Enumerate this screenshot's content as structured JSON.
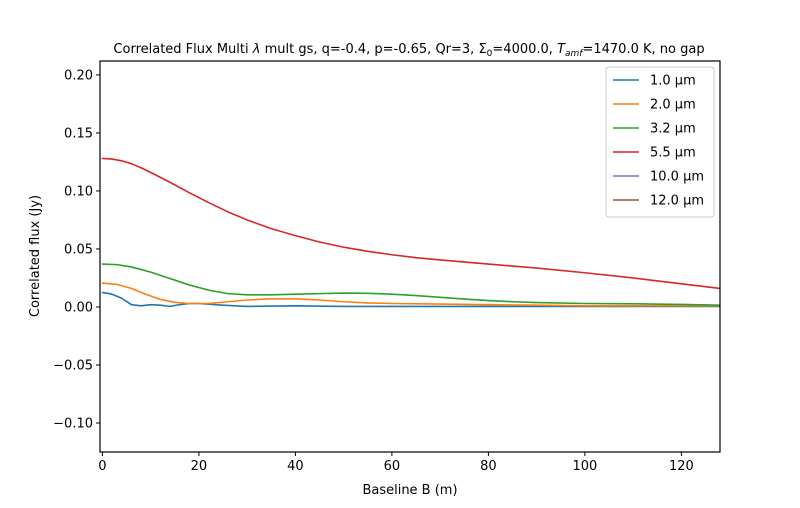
{
  "chart_data": {
    "type": "line",
    "title_parts": {
      "a": "Correlated Flux Multi ",
      "lambda": "λ",
      "b": " mult gs, q=-0.4, p=-0.65, Qr=3, Σ",
      "sigma_sub": "0",
      "c": "=4000.0, ",
      "t": "T",
      "t_sub": "amf",
      "d": "=1470.0 K, no gap"
    },
    "xlabel": "Baseline B (m)",
    "ylabel": "Correlated flux (Jy)",
    "xlim": [
      -0.5,
      128
    ],
    "ylim": [
      -0.125,
      0.212
    ],
    "xticks": [
      0,
      20,
      40,
      60,
      80,
      100,
      120
    ],
    "yticks": [
      -0.1,
      -0.05,
      0.0,
      0.05,
      0.1,
      0.15,
      0.2
    ],
    "ytick_labels": [
      "−0.10",
      "−0.05",
      "0.00",
      "0.05",
      "0.10",
      "0.15",
      "0.20"
    ],
    "legend_position": "top-right",
    "grid": false,
    "series": [
      {
        "name": "1.0 μm",
        "color": "#1f77b4",
        "x": [
          0,
          2,
          4,
          6,
          8,
          10,
          12,
          14,
          16,
          18,
          20,
          25,
          30,
          40,
          50,
          60,
          70,
          80,
          90,
          100,
          110,
          120,
          128
        ],
        "y": [
          0.0125,
          0.011,
          0.0075,
          0.002,
          0.001,
          0.002,
          0.0015,
          0.0005,
          0.002,
          0.003,
          0.003,
          0.0015,
          0.0005,
          0.001,
          0.0005,
          0.0005,
          0.0005,
          0.0005,
          0.0005,
          0.0005,
          0.0005,
          0.0005,
          0.0005
        ]
      },
      {
        "name": "2.0 μm",
        "color": "#ff7f0e",
        "x": [
          0,
          3,
          6,
          9,
          12,
          15,
          18,
          22,
          26,
          30,
          35,
          40,
          45,
          50,
          55,
          60,
          70,
          80,
          90,
          100,
          110,
          120,
          128
        ],
        "y": [
          0.0205,
          0.0195,
          0.016,
          0.011,
          0.0065,
          0.004,
          0.003,
          0.003,
          0.0045,
          0.006,
          0.007,
          0.007,
          0.006,
          0.0045,
          0.0035,
          0.003,
          0.0025,
          0.002,
          0.0015,
          0.001,
          0.001,
          0.001,
          0.001
        ]
      },
      {
        "name": "3.2 μm",
        "color": "#2ca02c",
        "x": [
          0,
          3,
          6,
          10,
          14,
          18,
          22,
          26,
          30,
          35,
          40,
          45,
          50,
          55,
          60,
          65,
          70,
          75,
          80,
          85,
          90,
          100,
          110,
          120,
          128
        ],
        "y": [
          0.037,
          0.0365,
          0.0345,
          0.03,
          0.0245,
          0.019,
          0.0145,
          0.0115,
          0.0105,
          0.0105,
          0.011,
          0.0115,
          0.012,
          0.0118,
          0.011,
          0.0098,
          0.0083,
          0.0068,
          0.0055,
          0.0045,
          0.0038,
          0.003,
          0.0027,
          0.0022,
          0.0015
        ]
      },
      {
        "name": "5.5 μm",
        "color": "#d62728",
        "x": [
          0,
          2,
          4,
          6,
          8,
          10,
          14,
          18,
          22,
          26,
          30,
          35,
          40,
          45,
          50,
          55,
          60,
          65,
          70,
          80,
          90,
          100,
          110,
          120,
          128
        ],
        "y": [
          0.128,
          0.1275,
          0.126,
          0.1235,
          0.12,
          0.116,
          0.1075,
          0.0985,
          0.09,
          0.082,
          0.075,
          0.0675,
          0.0615,
          0.056,
          0.0515,
          0.048,
          0.045,
          0.0425,
          0.0405,
          0.037,
          0.0335,
          0.0295,
          0.025,
          0.02,
          0.016
        ]
      },
      {
        "name": "10.0 μm",
        "color": "#9467bd",
        "x": [],
        "y": []
      },
      {
        "name": "12.0 μm",
        "color": "#8c564b",
        "x": [],
        "y": []
      }
    ]
  }
}
